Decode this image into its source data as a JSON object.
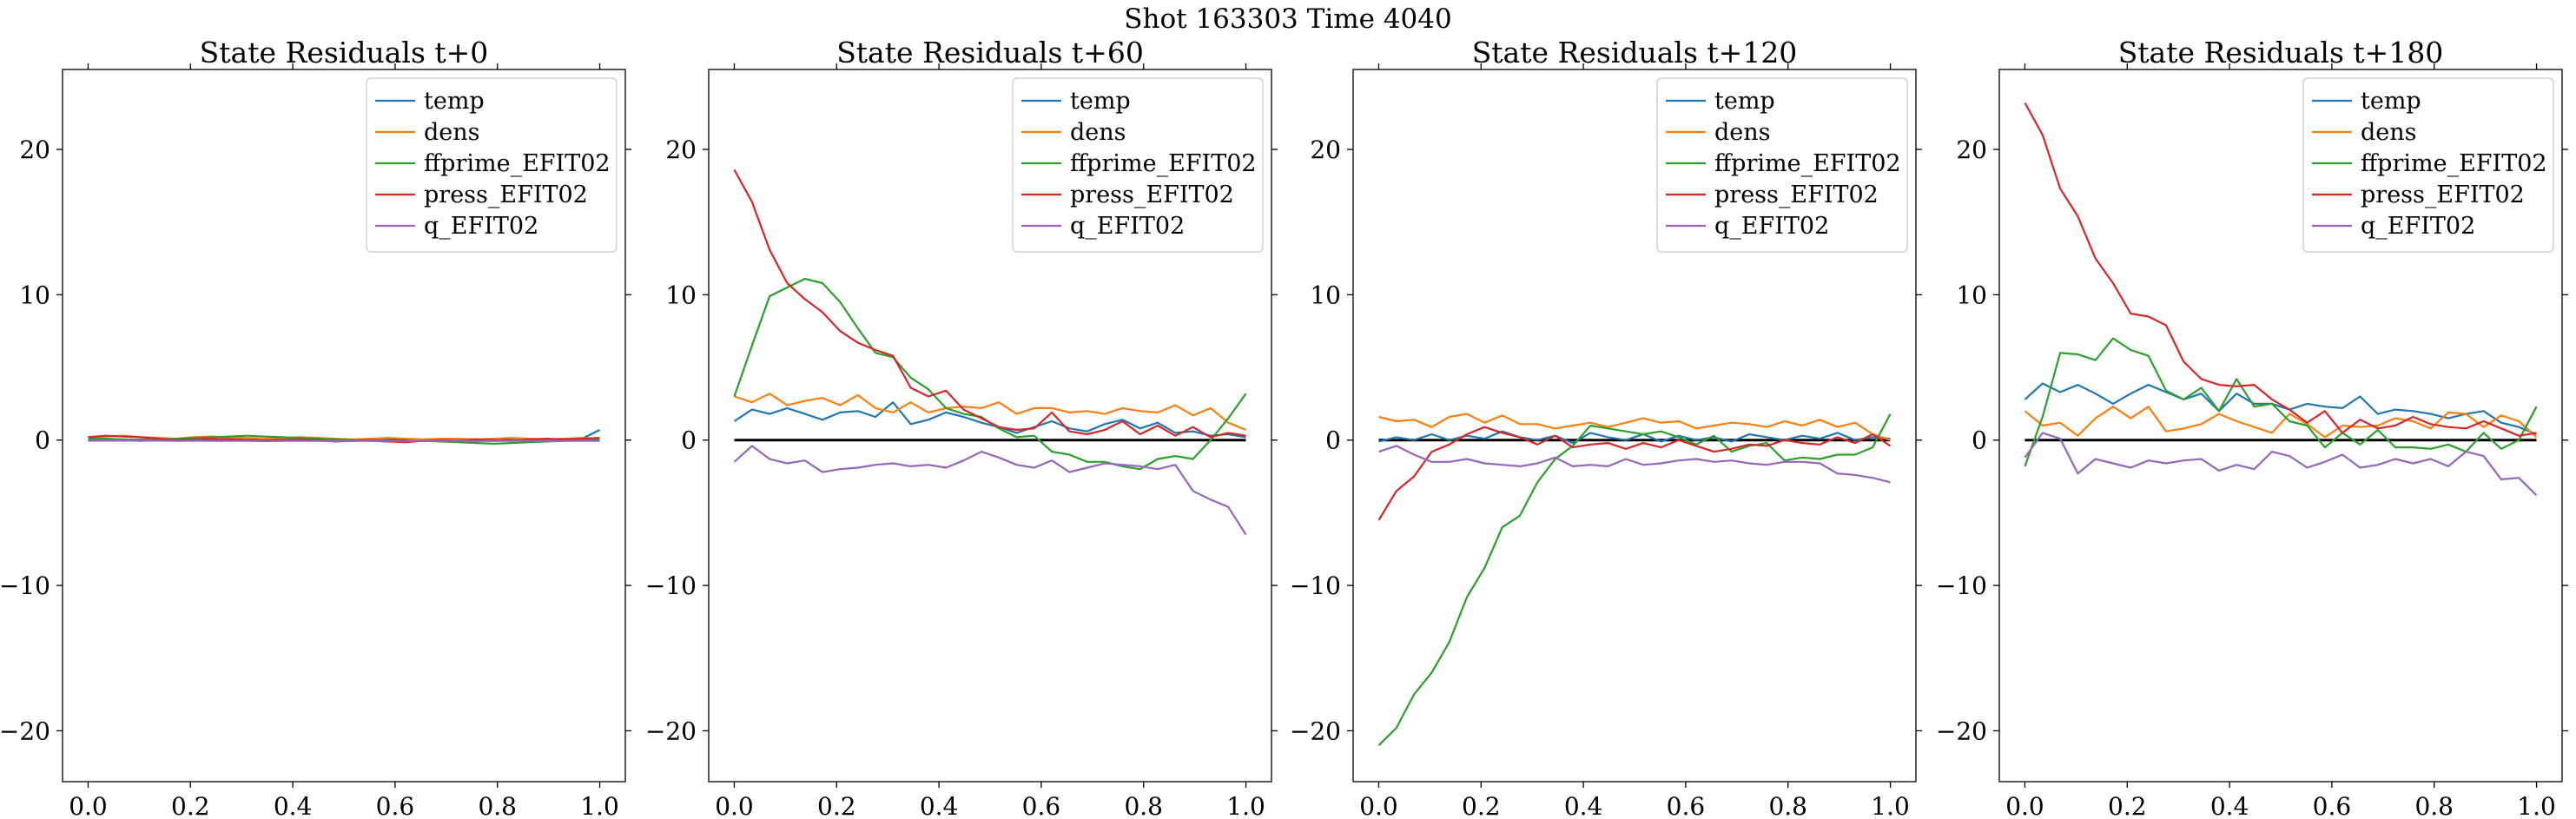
{
  "figure": {
    "suptitle": "Shot 163303   Time 4040"
  },
  "chart_data": [
    {
      "type": "line",
      "title": "State Residuals t+0",
      "xlabel": "",
      "ylabel": "",
      "xlim": [
        -0.05,
        1.05
      ],
      "ylim": [
        -23.5,
        25.5
      ],
      "xticks": [
        "0.0",
        "0.2",
        "0.4",
        "0.6",
        "0.8",
        "1.0"
      ],
      "yticks": [
        "20",
        "10",
        "0",
        "−10",
        "−20"
      ],
      "legend_position": "upper right",
      "zero_line": true,
      "x": [
        0.0,
        0.0345,
        0.069,
        0.1034,
        0.1379,
        0.1724,
        0.2069,
        0.2414,
        0.2759,
        0.3103,
        0.3448,
        0.3793,
        0.4138,
        0.4483,
        0.4828,
        0.5172,
        0.5517,
        0.5862,
        0.6207,
        0.6552,
        0.6897,
        0.7241,
        0.7586,
        0.7931,
        0.8276,
        0.8621,
        0.8966,
        0.931,
        0.9655,
        1.0
      ],
      "series": [
        {
          "name": "temp",
          "color": "#1f77b4",
          "values": [
            0.0,
            0.05,
            0.0,
            -0.05,
            0.05,
            0.0,
            -0.05,
            0.05,
            0.1,
            0.0,
            -0.05,
            0.0,
            0.05,
            0.0,
            -0.05,
            0.0,
            0.05,
            0.0,
            -0.05,
            0.0,
            0.0,
            0.05,
            0.0,
            -0.05,
            0.0,
            0.05,
            0.0,
            0.05,
            0.1,
            0.7
          ]
        },
        {
          "name": "dens",
          "color": "#ff7f0e",
          "values": [
            0.2,
            0.25,
            0.3,
            0.2,
            0.15,
            0.1,
            0.2,
            0.25,
            0.2,
            0.15,
            0.1,
            0.15,
            0.2,
            0.15,
            0.1,
            0.05,
            0.1,
            0.15,
            0.1,
            0.05,
            0.1,
            0.1,
            0.05,
            0.1,
            0.15,
            0.1,
            0.05,
            0.1,
            0.15,
            0.1
          ]
        },
        {
          "name": "ffprime_EFIT02",
          "color": "#2ca02c",
          "values": [
            0.1,
            0.1,
            0.05,
            0.0,
            0.05,
            0.1,
            0.15,
            0.2,
            0.25,
            0.3,
            0.25,
            0.2,
            0.15,
            0.1,
            0.05,
            0.0,
            -0.05,
            -0.1,
            -0.1,
            -0.05,
            -0.1,
            -0.15,
            -0.2,
            -0.25,
            -0.2,
            -0.15,
            -0.1,
            -0.05,
            0.0,
            0.05
          ]
        },
        {
          "name": "press_EFIT02",
          "color": "#d62728",
          "values": [
            0.2,
            0.3,
            0.25,
            0.2,
            0.1,
            0.0,
            0.05,
            0.1,
            0.05,
            0.0,
            -0.05,
            0.0,
            0.05,
            0.0,
            -0.1,
            -0.05,
            0.0,
            -0.1,
            -0.15,
            -0.05,
            0.0,
            -0.05,
            0.05,
            0.0,
            -0.05,
            0.05,
            0.1,
            0.05,
            0.1,
            0.15
          ]
        },
        {
          "name": "q_EFIT02",
          "color": "#9467bd",
          "values": [
            0.0,
            -0.02,
            -0.03,
            -0.02,
            -0.04,
            -0.05,
            -0.04,
            -0.05,
            -0.06,
            -0.05,
            -0.07,
            -0.06,
            -0.05,
            -0.06,
            -0.07,
            -0.06,
            -0.05,
            -0.06,
            -0.07,
            -0.06,
            -0.05,
            -0.06,
            -0.07,
            -0.06,
            -0.05,
            -0.06,
            -0.07,
            -0.06,
            -0.05,
            -0.06
          ]
        }
      ]
    },
    {
      "type": "line",
      "title": "State Residuals t+60",
      "xlabel": "",
      "ylabel": "",
      "xlim": [
        -0.05,
        1.05
      ],
      "ylim": [
        -23.5,
        25.5
      ],
      "xticks": [
        "0.0",
        "0.2",
        "0.4",
        "0.6",
        "0.8",
        "1.0"
      ],
      "yticks": [
        "20",
        "10",
        "0",
        "−10",
        "−20"
      ],
      "legend_position": "upper right",
      "zero_line": true,
      "x": [
        0.0,
        0.0345,
        0.069,
        0.1034,
        0.1379,
        0.1724,
        0.2069,
        0.2414,
        0.2759,
        0.3103,
        0.3448,
        0.3793,
        0.4138,
        0.4483,
        0.4828,
        0.5172,
        0.5517,
        0.5862,
        0.6207,
        0.6552,
        0.6897,
        0.7241,
        0.7586,
        0.7931,
        0.8276,
        0.8621,
        0.8966,
        0.931,
        0.9655,
        1.0
      ],
      "series": [
        {
          "name": "temp",
          "color": "#1f77b4",
          "values": [
            1.3,
            2.1,
            1.8,
            2.2,
            1.8,
            1.4,
            1.9,
            2.0,
            1.6,
            2.6,
            1.1,
            1.4,
            1.9,
            1.6,
            1.2,
            0.9,
            0.5,
            0.9,
            1.3,
            0.8,
            0.6,
            1.1,
            1.4,
            0.8,
            1.2,
            0.5,
            0.6,
            0.3,
            0.4,
            0.2
          ]
        },
        {
          "name": "dens",
          "color": "#ff7f0e",
          "values": [
            3.0,
            2.6,
            3.2,
            2.4,
            2.7,
            2.9,
            2.4,
            3.1,
            2.2,
            1.9,
            2.6,
            1.9,
            2.2,
            2.3,
            2.2,
            2.6,
            1.8,
            2.2,
            2.2,
            1.9,
            2.0,
            1.8,
            2.2,
            2.0,
            1.9,
            2.4,
            1.7,
            2.2,
            1.2,
            0.7
          ]
        },
        {
          "name": "ffprime_EFIT02",
          "color": "#2ca02c",
          "values": [
            3.0,
            6.5,
            9.9,
            10.5,
            11.1,
            10.8,
            9.5,
            7.7,
            6.0,
            5.7,
            4.3,
            3.5,
            2.2,
            1.8,
            1.6,
            0.8,
            0.2,
            0.3,
            -0.8,
            -1.0,
            -1.5,
            -1.5,
            -1.8,
            -2.0,
            -1.3,
            -1.1,
            -1.3,
            0.0,
            1.5,
            3.2
          ]
        },
        {
          "name": "press_EFIT02",
          "color": "#d62728",
          "values": [
            18.6,
            16.4,
            13.1,
            10.8,
            9.7,
            8.8,
            7.5,
            6.7,
            6.2,
            5.8,
            3.6,
            3.0,
            3.4,
            2.1,
            1.5,
            0.9,
            0.7,
            0.8,
            1.9,
            0.6,
            0.4,
            0.7,
            1.3,
            0.4,
            1.0,
            0.3,
            0.9,
            0.2,
            0.5,
            0.3
          ]
        },
        {
          "name": "q_EFIT02",
          "color": "#9467bd",
          "values": [
            -1.5,
            -0.4,
            -1.3,
            -1.6,
            -1.4,
            -2.2,
            -2.0,
            -1.9,
            -1.7,
            -1.6,
            -1.8,
            -1.7,
            -1.9,
            -1.4,
            -0.8,
            -1.2,
            -1.7,
            -1.9,
            -1.4,
            -2.2,
            -1.9,
            -1.6,
            -1.7,
            -1.8,
            -2.0,
            -1.7,
            -3.5,
            -4.1,
            -4.6,
            -6.5
          ]
        }
      ]
    },
    {
      "type": "line",
      "title": "State Residuals t+120",
      "xlabel": "",
      "ylabel": "",
      "xlim": [
        -0.05,
        1.05
      ],
      "ylim": [
        -23.5,
        25.5
      ],
      "xticks": [
        "0.0",
        "0.2",
        "0.4",
        "0.6",
        "0.8",
        "1.0"
      ],
      "yticks": [
        "20",
        "10",
        "0",
        "−10",
        "−20"
      ],
      "legend_position": "upper right",
      "zero_line": true,
      "x": [
        0.0,
        0.0345,
        0.069,
        0.1034,
        0.1379,
        0.1724,
        0.2069,
        0.2414,
        0.2759,
        0.3103,
        0.3448,
        0.3793,
        0.4138,
        0.4483,
        0.4828,
        0.5172,
        0.5517,
        0.5862,
        0.6207,
        0.6552,
        0.6897,
        0.7241,
        0.7586,
        0.7931,
        0.8276,
        0.8621,
        0.8966,
        0.931,
        0.9655,
        1.0
      ],
      "series": [
        {
          "name": "temp",
          "color": "#1f77b4",
          "values": [
            -0.1,
            0.2,
            0.0,
            0.4,
            0.0,
            0.3,
            0.1,
            0.6,
            0.2,
            0.0,
            0.3,
            -0.2,
            0.5,
            0.2,
            0.0,
            0.4,
            -0.1,
            0.3,
            0.0,
            0.2,
            -0.1,
            0.4,
            0.2,
            0.0,
            0.3,
            0.1,
            0.5,
            0.0,
            0.2,
            0.1
          ]
        },
        {
          "name": "dens",
          "color": "#ff7f0e",
          "values": [
            1.6,
            1.3,
            1.4,
            0.9,
            1.6,
            1.8,
            1.2,
            1.7,
            1.1,
            1.1,
            0.8,
            1.0,
            1.2,
            0.9,
            1.2,
            1.5,
            1.2,
            1.3,
            0.8,
            1.0,
            1.2,
            1.1,
            0.9,
            1.3,
            1.0,
            1.4,
            0.9,
            1.2,
            0.4,
            0.0
          ]
        },
        {
          "name": "ffprime_EFIT02",
          "color": "#2ca02c",
          "values": [
            -21.0,
            -19.8,
            -17.5,
            -16.0,
            -13.9,
            -10.8,
            -8.8,
            -6.0,
            -5.2,
            -2.9,
            -1.3,
            -0.4,
            1.0,
            0.8,
            0.6,
            0.4,
            0.6,
            0.2,
            -0.3,
            0.3,
            -0.8,
            -0.4,
            -0.2,
            -1.4,
            -1.2,
            -1.3,
            -1.0,
            -1.0,
            -0.5,
            1.8
          ]
        },
        {
          "name": "press_EFIT02",
          "color": "#d62728",
          "values": [
            -5.5,
            -3.5,
            -2.5,
            -0.8,
            -0.3,
            0.4,
            0.9,
            0.5,
            0.2,
            -0.3,
            0.3,
            -0.5,
            -0.3,
            -0.2,
            -0.6,
            -0.2,
            -0.5,
            0.0,
            -0.4,
            -0.8,
            -0.6,
            -0.3,
            -0.4,
            0.0,
            -0.2,
            -0.3,
            0.2,
            -0.2,
            0.4,
            -0.4
          ]
        },
        {
          "name": "q_EFIT02",
          "color": "#9467bd",
          "values": [
            -0.8,
            -0.4,
            -1.0,
            -1.5,
            -1.5,
            -1.3,
            -1.6,
            -1.7,
            -1.8,
            -1.6,
            -1.2,
            -1.8,
            -1.7,
            -1.8,
            -1.3,
            -1.7,
            -1.6,
            -1.4,
            -1.3,
            -1.5,
            -1.4,
            -1.6,
            -1.7,
            -1.5,
            -1.5,
            -1.6,
            -2.3,
            -2.4,
            -2.6,
            -2.9
          ]
        }
      ]
    },
    {
      "type": "line",
      "title": "State Residuals t+180",
      "xlabel": "",
      "ylabel": "",
      "xlim": [
        -0.05,
        1.05
      ],
      "ylim": [
        -23.5,
        25.5
      ],
      "xticks": [
        "0.0",
        "0.2",
        "0.4",
        "0.6",
        "0.8",
        "1.0"
      ],
      "yticks": [
        "20",
        "10",
        "0",
        "−10",
        "−20"
      ],
      "legend_position": "upper right",
      "zero_line": true,
      "x": [
        0.0,
        0.0345,
        0.069,
        0.1034,
        0.1379,
        0.1724,
        0.2069,
        0.2414,
        0.2759,
        0.3103,
        0.3448,
        0.3793,
        0.4138,
        0.4483,
        0.4828,
        0.5172,
        0.5517,
        0.5862,
        0.6207,
        0.6552,
        0.6897,
        0.7241,
        0.7586,
        0.7931,
        0.8276,
        0.8621,
        0.8966,
        0.931,
        0.9655,
        1.0
      ],
      "series": [
        {
          "name": "temp",
          "color": "#1f77b4",
          "values": [
            2.8,
            3.9,
            3.3,
            3.8,
            3.2,
            2.5,
            3.2,
            3.8,
            3.3,
            2.8,
            3.2,
            2.0,
            3.2,
            2.5,
            2.5,
            2.1,
            2.5,
            2.3,
            2.2,
            3.0,
            1.8,
            2.1,
            2.0,
            1.8,
            1.5,
            1.8,
            2.0,
            1.2,
            0.9,
            0.4
          ]
        },
        {
          "name": "dens",
          "color": "#ff7f0e",
          "values": [
            2.0,
            1.0,
            1.2,
            0.3,
            1.5,
            2.3,
            1.5,
            2.3,
            0.6,
            0.8,
            1.1,
            1.8,
            1.3,
            0.9,
            0.5,
            1.8,
            1.1,
            0.2,
            1.0,
            0.9,
            1.0,
            1.5,
            1.3,
            0.8,
            1.9,
            1.8,
            0.9,
            1.7,
            1.3,
            0.2
          ]
        },
        {
          "name": "ffprime_EFIT02",
          "color": "#2ca02c",
          "values": [
            -1.8,
            1.6,
            6.0,
            5.9,
            5.5,
            7.0,
            6.2,
            5.8,
            3.4,
            2.8,
            3.6,
            2.0,
            4.2,
            2.3,
            2.5,
            1.3,
            1.0,
            -0.5,
            0.5,
            -0.3,
            0.7,
            -0.5,
            -0.5,
            -0.6,
            -0.3,
            -0.8,
            0.5,
            -0.6,
            0.0,
            2.3
          ]
        },
        {
          "name": "press_EFIT02",
          "color": "#d62728",
          "values": [
            23.2,
            21.0,
            17.3,
            15.4,
            12.5,
            10.8,
            8.7,
            8.5,
            7.9,
            5.4,
            4.2,
            3.8,
            3.7,
            3.8,
            2.8,
            2.1,
            1.2,
            2.0,
            0.5,
            1.4,
            0.8,
            1.0,
            1.6,
            1.1,
            0.9,
            0.8,
            1.3,
            0.8,
            0.3,
            0.5
          ]
        },
        {
          "name": "q_EFIT02",
          "color": "#9467bd",
          "values": [
            -1.2,
            0.5,
            0.1,
            -2.3,
            -1.3,
            -1.6,
            -1.9,
            -1.4,
            -1.6,
            -1.4,
            -1.3,
            -2.1,
            -1.7,
            -2.0,
            -0.8,
            -1.1,
            -1.9,
            -1.5,
            -1.0,
            -1.9,
            -1.7,
            -1.3,
            -1.6,
            -1.3,
            -1.8,
            -0.8,
            -1.1,
            -2.7,
            -2.6,
            -3.8
          ]
        }
      ]
    }
  ]
}
